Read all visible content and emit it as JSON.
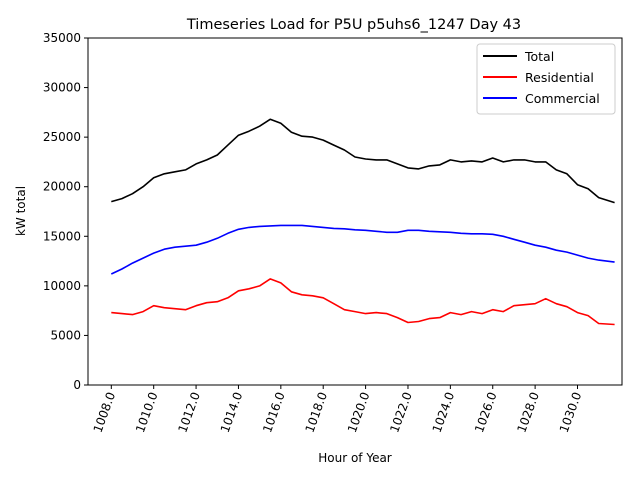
{
  "chart_data": {
    "type": "line",
    "title": "Timeseries Load for P5U p5uhs6_1247  Day 43",
    "xlabel": "Hour of Year",
    "ylabel": "kW total",
    "xlim": [
      1006.9,
      1032.1
    ],
    "ylim": [
      0,
      35000
    ],
    "x_ticks": [
      1008,
      1010,
      1012,
      1014,
      1016,
      1018,
      1020,
      1022,
      1024,
      1026,
      1028,
      1030
    ],
    "x_tick_labels": [
      "1008.0",
      "1010.0",
      "1012.0",
      "1014.0",
      "1016.0",
      "1018.0",
      "1020.0",
      "1022.0",
      "1024.0",
      "1026.0",
      "1028.0",
      "1030.0"
    ],
    "y_ticks": [
      0,
      5000,
      10000,
      15000,
      20000,
      25000,
      30000,
      35000
    ],
    "y_tick_labels": [
      "0",
      "5000",
      "10000",
      "15000",
      "20000",
      "25000",
      "30000",
      "35000"
    ],
    "grid": false,
    "legend_position": "top-right",
    "x": [
      1008,
      1008.5,
      1009,
      1009.5,
      1010,
      1010.5,
      1011,
      1011.5,
      1012,
      1012.5,
      1013,
      1013.5,
      1014,
      1014.5,
      1015,
      1015.5,
      1016,
      1016.5,
      1017,
      1017.5,
      1018,
      1018.5,
      1019,
      1019.5,
      1020,
      1020.5,
      1021,
      1021.5,
      1022,
      1022.5,
      1023,
      1023.5,
      1024,
      1024.5,
      1025,
      1025.5,
      1026,
      1026.5,
      1027,
      1027.5,
      1028,
      1028.5,
      1029,
      1029.5,
      1030,
      1030.5,
      1031,
      1031.75
    ],
    "series": [
      {
        "name": "Total",
        "color": "#000000",
        "values": [
          18500,
          18800,
          19300,
          20000,
          20900,
          21300,
          21500,
          21700,
          22300,
          22700,
          23200,
          24200,
          25200,
          25600,
          26100,
          26800,
          26400,
          25500,
          25100,
          25000,
          24700,
          24200,
          23700,
          23000,
          22800,
          22700,
          22700,
          22300,
          21900,
          21800,
          22100,
          22200,
          22700,
          22500,
          22600,
          22500,
          22900,
          22500,
          22700,
          22700,
          22500,
          22500,
          21700,
          21300,
          20200,
          19800,
          18900,
          18400
        ]
      },
      {
        "name": "Residential",
        "color": "#ff0000",
        "values": [
          7300,
          7200,
          7100,
          7400,
          8000,
          7800,
          7700,
          7600,
          8000,
          8300,
          8400,
          8800,
          9500,
          9700,
          10000,
          10700,
          10300,
          9400,
          9100,
          9000,
          8800,
          8200,
          7600,
          7400,
          7200,
          7300,
          7200,
          6800,
          6300,
          6400,
          6700,
          6800,
          7300,
          7100,
          7400,
          7200,
          7600,
          7400,
          8000,
          8100,
          8200,
          8700,
          8200,
          7900,
          7300,
          7000,
          6200,
          6100
        ]
      },
      {
        "name": "Commercial",
        "color": "#0000ff",
        "values": [
          11200,
          11700,
          12300,
          12800,
          13300,
          13700,
          13900,
          14000,
          14100,
          14400,
          14800,
          15300,
          15700,
          15900,
          16000,
          16050,
          16100,
          16100,
          16100,
          16000,
          15900,
          15800,
          15750,
          15650,
          15600,
          15500,
          15400,
          15400,
          15600,
          15600,
          15500,
          15450,
          15400,
          15300,
          15250,
          15250,
          15200,
          15000,
          14700,
          14400,
          14100,
          13900,
          13600,
          13400,
          13100,
          12800,
          12600,
          12400
        ]
      }
    ]
  }
}
